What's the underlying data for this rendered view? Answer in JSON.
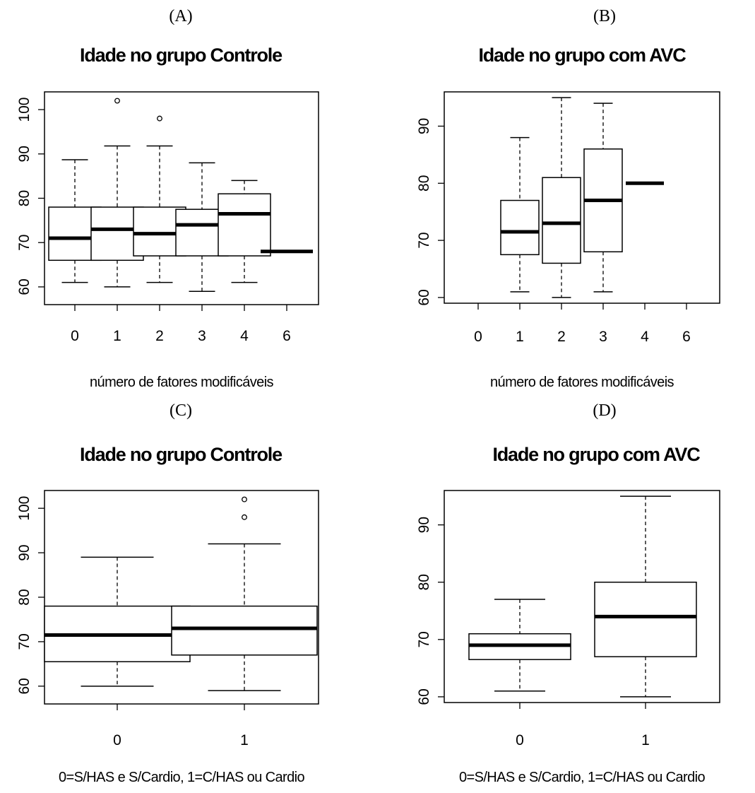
{
  "chart_data": [
    {
      "panel": "(A)",
      "type": "box",
      "title": "Idade no grupo Controle",
      "xlabel": "número de fatores modificáveis",
      "ylabel": "",
      "ylim": [
        56,
        104
      ],
      "yticks": [
        60,
        70,
        80,
        90,
        100
      ],
      "x_tick_labels": [
        "0",
        "1",
        "2",
        "3",
        "4",
        "6"
      ],
      "boxes": [
        {
          "category": "0",
          "min": 61,
          "q1": 66,
          "median": 71,
          "q3": 78,
          "max": 88.7,
          "outliers": []
        },
        {
          "category": "1",
          "min": 60,
          "q1": 66,
          "median": 73,
          "q3": 78,
          "max": 91.8,
          "outliers": [
            102
          ]
        },
        {
          "category": "2",
          "min": 61,
          "q1": 67,
          "median": 72,
          "q3": 78,
          "max": 91.8,
          "outliers": [
            98
          ]
        },
        {
          "category": "3",
          "min": 59,
          "q1": 67,
          "median": 74,
          "q3": 77.5,
          "max": 88,
          "outliers": []
        },
        {
          "category": "4",
          "min": 61,
          "q1": 67,
          "median": 76.5,
          "q3": 81,
          "max": 84,
          "outliers": []
        },
        {
          "category": "6",
          "min": 68,
          "q1": 68,
          "median": 68,
          "q3": 68,
          "max": 68,
          "outliers": []
        }
      ]
    },
    {
      "panel": "(B)",
      "type": "box",
      "title": "Idade no grupo com AVC",
      "xlabel": "número de fatores modificáveis",
      "ylabel": "",
      "ylim": [
        59,
        96
      ],
      "yticks": [
        60,
        70,
        80,
        90
      ],
      "x_tick_labels": [
        "0",
        "1",
        "2",
        "3",
        "4",
        "6"
      ],
      "boxes": [
        {
          "category": "0",
          "empty": true
        },
        {
          "category": "1",
          "min": 61,
          "q1": 67.5,
          "median": 71.5,
          "q3": 77,
          "max": 88,
          "outliers": []
        },
        {
          "category": "2",
          "min": 60,
          "q1": 66,
          "median": 73,
          "q3": 81,
          "max": 95,
          "outliers": []
        },
        {
          "category": "3",
          "min": 61,
          "q1": 68,
          "median": 77,
          "q3": 86,
          "max": 94,
          "outliers": []
        },
        {
          "category": "4",
          "min": 80,
          "q1": 80,
          "median": 80,
          "q3": 80,
          "max": 80,
          "outliers": []
        },
        {
          "category": "6",
          "empty": true
        }
      ]
    },
    {
      "panel": "(C)",
      "type": "box",
      "title": "Idade no grupo Controle",
      "xlabel": "0=S/HAS e S/Cardio, 1=C/HAS ou Cardio",
      "ylabel": "",
      "ylim": [
        56,
        104
      ],
      "yticks": [
        60,
        70,
        80,
        90,
        100
      ],
      "x_tick_labels": [
        "0",
        "1"
      ],
      "boxes": [
        {
          "category": "0",
          "min": 60,
          "q1": 65.5,
          "median": 71.5,
          "q3": 78,
          "max": 89,
          "outliers": []
        },
        {
          "category": "1",
          "min": 59,
          "q1": 67,
          "median": 73,
          "q3": 78,
          "max": 92,
          "outliers": [
            98,
            102
          ]
        }
      ]
    },
    {
      "panel": "(D)",
      "type": "box",
      "title": "Idade no grupo com AVC",
      "xlabel": "0=S/HAS e S/Cardio, 1=C/HAS ou Cardio",
      "ylabel": "",
      "ylim": [
        59,
        96
      ],
      "yticks": [
        60,
        70,
        80,
        90
      ],
      "x_tick_labels": [
        "0",
        "1"
      ],
      "boxes": [
        {
          "category": "0",
          "min": 61,
          "q1": 66.5,
          "median": 69,
          "q3": 71,
          "max": 77,
          "outliers": []
        },
        {
          "category": "1",
          "min": 60,
          "q1": 67,
          "median": 74,
          "q3": 80,
          "max": 95,
          "outliers": []
        }
      ]
    }
  ]
}
